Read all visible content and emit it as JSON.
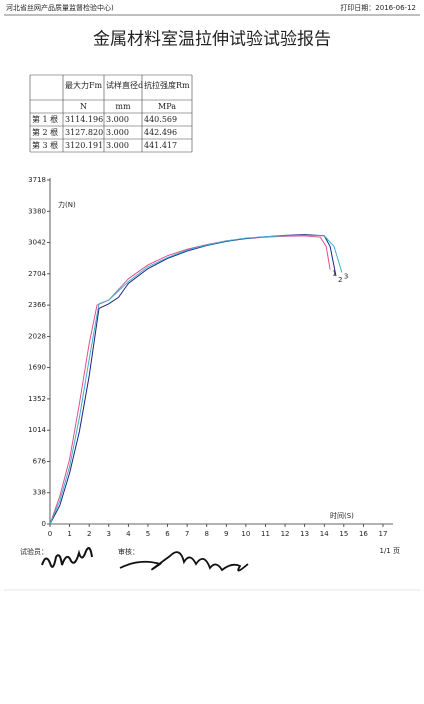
{
  "header": {
    "org": "河北省丝网产品质量监督检验中心)",
    "print_date": "打印日期：2016-06-12"
  },
  "title": "金属材料室温拉伸试验试验报告",
  "table": {
    "columns": [
      "最大力Fm",
      "试样直径d",
      "抗拉强度Rm"
    ],
    "units": [
      "N",
      "mm",
      "MPa"
    ],
    "rows": [
      [
        "第 1 根",
        "3114.196",
        "3.000",
        "440.569"
      ],
      [
        "第 2 根",
        "3127.820",
        "3.000",
        "442.496"
      ],
      [
        "第 3 根",
        "3120.191",
        "3.000",
        "441.417"
      ]
    ]
  },
  "chart_data": {
    "type": "line",
    "y_label": "力(N)",
    "x_label": "时间(S)",
    "xlim": [
      0,
      17
    ],
    "xticks": [
      0,
      1,
      2,
      3,
      4,
      5,
      6,
      7,
      8,
      9,
      10,
      11,
      12,
      13,
      14,
      15,
      16,
      17
    ],
    "ylim": [
      0,
      3718
    ],
    "yticks": [
      0,
      338,
      676,
      1014,
      1352,
      1690,
      2028,
      2366,
      2704,
      3042,
      3380,
      3718
    ],
    "series": [
      {
        "name": "1",
        "color": "#e0508a",
        "x": [
          0,
          0.5,
          1,
          1.5,
          2,
          2.4,
          3,
          4,
          5,
          6,
          7,
          8,
          9,
          10,
          11,
          12,
          13,
          13.8,
          14.1,
          14.3
        ],
        "values": [
          0,
          300,
          700,
          1300,
          1950,
          2366,
          2420,
          2650,
          2800,
          2900,
          2970,
          3020,
          3060,
          3085,
          3100,
          3110,
          3114,
          3100,
          3000,
          2750
        ]
      },
      {
        "name": "2",
        "color": "#1a237e",
        "x": [
          0,
          0.5,
          1,
          1.5,
          2,
          2.5,
          3,
          3.5,
          4,
          5,
          6,
          7,
          8,
          9,
          10,
          11,
          12,
          13,
          14,
          14.3,
          14.6
        ],
        "values": [
          0,
          200,
          550,
          1000,
          1600,
          2330,
          2380,
          2450,
          2600,
          2760,
          2870,
          2950,
          3010,
          3055,
          3085,
          3105,
          3120,
          3127,
          3115,
          3000,
          2680
        ]
      },
      {
        "name": "3",
        "color": "#3bb0d0",
        "x": [
          0,
          0.5,
          1,
          1.5,
          2,
          2.5,
          3,
          4,
          5,
          6,
          7,
          8,
          9,
          10,
          11,
          12,
          13,
          14,
          14.5,
          14.9
        ],
        "values": [
          0,
          250,
          620,
          1150,
          1780,
          2380,
          2420,
          2620,
          2780,
          2880,
          2960,
          3015,
          3060,
          3090,
          3105,
          3115,
          3120,
          3115,
          3000,
          2720
        ]
      }
    ]
  },
  "footer": {
    "tester": "试验员：",
    "reviewer": "审核：",
    "page": "1/1 页"
  }
}
